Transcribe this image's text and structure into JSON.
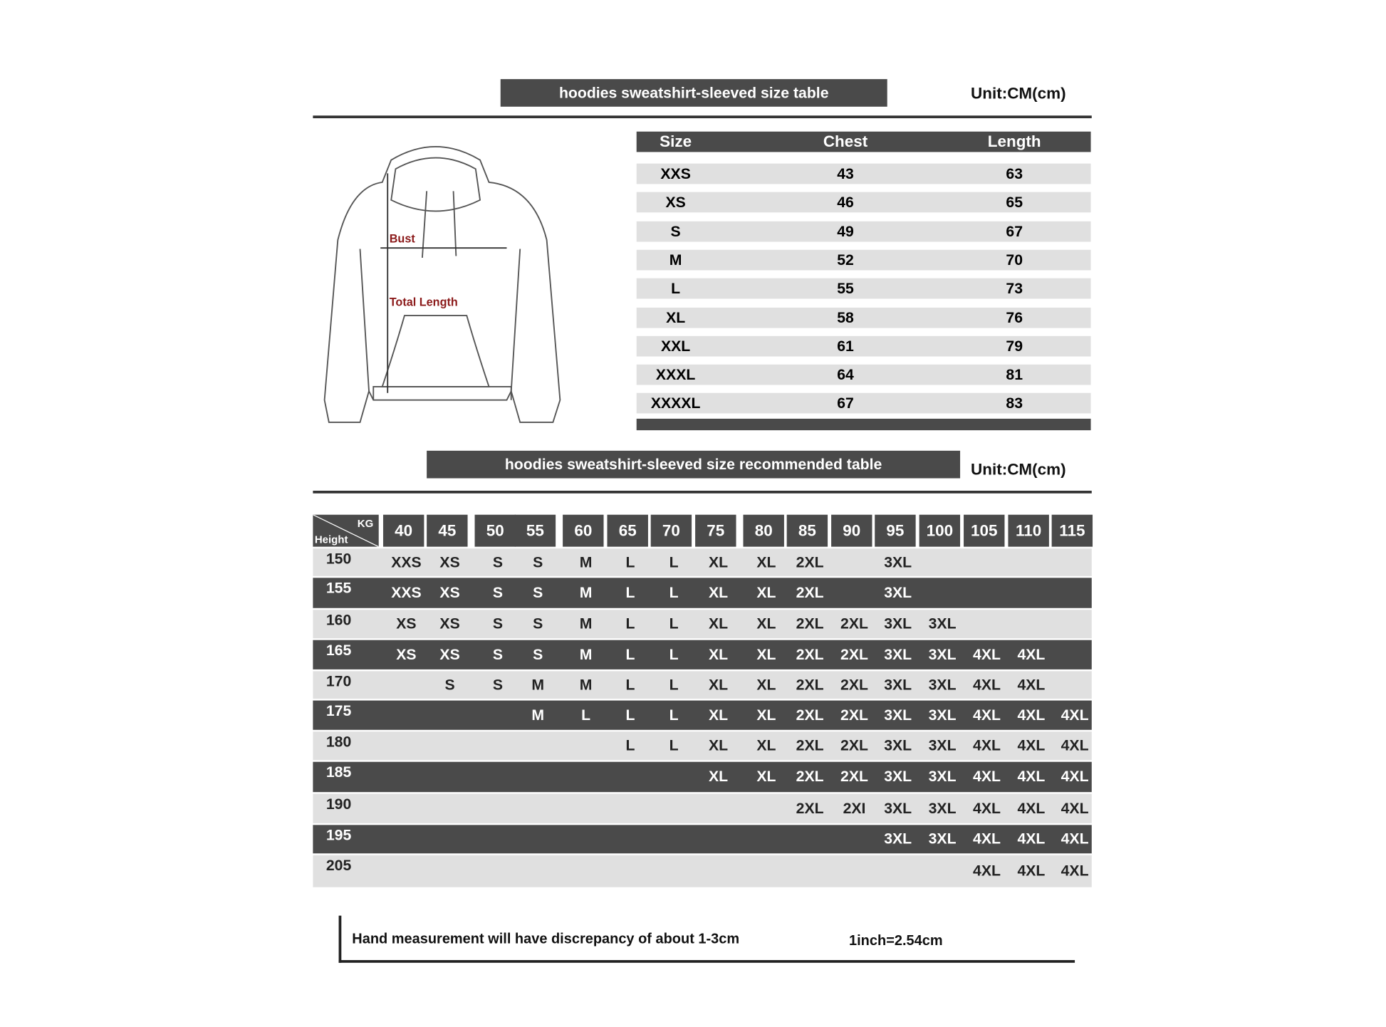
{
  "size_table": {
    "title": "hoodies sweatshirt-sleeved size  table",
    "unit": "Unit:CM(cm)",
    "headers": [
      "Size",
      "Chest",
      "Length"
    ],
    "rows": [
      [
        "XXS",
        "43",
        "63"
      ],
      [
        "XS",
        "46",
        "65"
      ],
      [
        "S",
        "49",
        "67"
      ],
      [
        "M",
        "52",
        "70"
      ],
      [
        "L",
        "55",
        "73"
      ],
      [
        "XL",
        "58",
        "76"
      ],
      [
        "XXL",
        "61",
        "79"
      ],
      [
        "XXXL",
        "64",
        "81"
      ],
      [
        "XXXXL",
        "67",
        "83"
      ]
    ]
  },
  "diagram": {
    "bust": "Bust",
    "total_length": "Total Length"
  },
  "recommend_table": {
    "title": "hoodies sweatshirt-sleeved size recommended table",
    "unit": "Unit:CM(cm)",
    "corner": {
      "kg": "KG",
      "height": "Height"
    },
    "weights": [
      "40",
      "45",
      "50",
      "55",
      "60",
      "65",
      "70",
      "75",
      "80",
      "85",
      "90",
      "95",
      "100",
      "105",
      "110",
      "115"
    ],
    "rows": [
      {
        "height": "150",
        "sizes": [
          "XXS",
          "XS",
          "S",
          "S",
          "M",
          "L",
          "L",
          "XL",
          "XL",
          "2XL",
          null,
          "3XL",
          null,
          null,
          null,
          null
        ]
      },
      {
        "height": "155",
        "sizes": [
          "XXS",
          "XS",
          "S",
          "S",
          "M",
          "L",
          "L",
          "XL",
          "XL",
          "2XL",
          null,
          "3XL",
          null,
          null,
          null,
          null
        ]
      },
      {
        "height": "160",
        "sizes": [
          "XS",
          "XS",
          "S",
          "S",
          "M",
          "L",
          "L",
          "XL",
          "XL",
          "2XL",
          "2XL",
          "3XL",
          "3XL",
          null,
          null,
          null
        ]
      },
      {
        "height": "165",
        "sizes": [
          "XS",
          "XS",
          "S",
          "S",
          "M",
          "L",
          "L",
          "XL",
          "XL",
          "2XL",
          "2XL",
          "3XL",
          "3XL",
          "4XL",
          "4XL",
          null
        ]
      },
      {
        "height": "170",
        "sizes": [
          null,
          "S",
          "S",
          "M",
          "M",
          "L",
          "L",
          "XL",
          "XL",
          "2XL",
          "2XL",
          "3XL",
          "3XL",
          "4XL",
          "4XL",
          null
        ]
      },
      {
        "height": "175",
        "sizes": [
          null,
          null,
          null,
          "M",
          "L",
          "L",
          "L",
          "XL",
          "XL",
          "2XL",
          "2XL",
          "3XL",
          "3XL",
          "4XL",
          "4XL",
          "4XL"
        ]
      },
      {
        "height": "180",
        "sizes": [
          null,
          null,
          null,
          null,
          null,
          "L",
          "L",
          "XL",
          "XL",
          "2XL",
          "2XL",
          "3XL",
          "3XL",
          "4XL",
          "4XL",
          "4XL"
        ]
      },
      {
        "height": "185",
        "sizes": [
          null,
          null,
          null,
          null,
          null,
          null,
          null,
          "XL",
          "XL",
          "2XL",
          "2XL",
          "3XL",
          "3XL",
          "4XL",
          "4XL",
          "4XL"
        ]
      },
      {
        "height": "190",
        "sizes": [
          null,
          null,
          null,
          null,
          null,
          null,
          null,
          null,
          null,
          "2XL",
          "2XI",
          "3XL",
          "3XL",
          "4XL",
          "4XL",
          "4XL"
        ]
      },
      {
        "height": "195",
        "sizes": [
          null,
          null,
          null,
          null,
          null,
          null,
          null,
          null,
          null,
          null,
          null,
          "3XL",
          "3XL",
          "4XL",
          "4XL",
          "4XL"
        ]
      },
      {
        "height": "205",
        "sizes": [
          null,
          null,
          null,
          null,
          null,
          null,
          null,
          null,
          null,
          null,
          null,
          null,
          null,
          "4XL",
          "4XL",
          "4XL"
        ]
      }
    ]
  },
  "footer": {
    "note": "Hand measurement will have discrepancy of about  1-3cm",
    "conversion": "1inch=2.54cm"
  }
}
